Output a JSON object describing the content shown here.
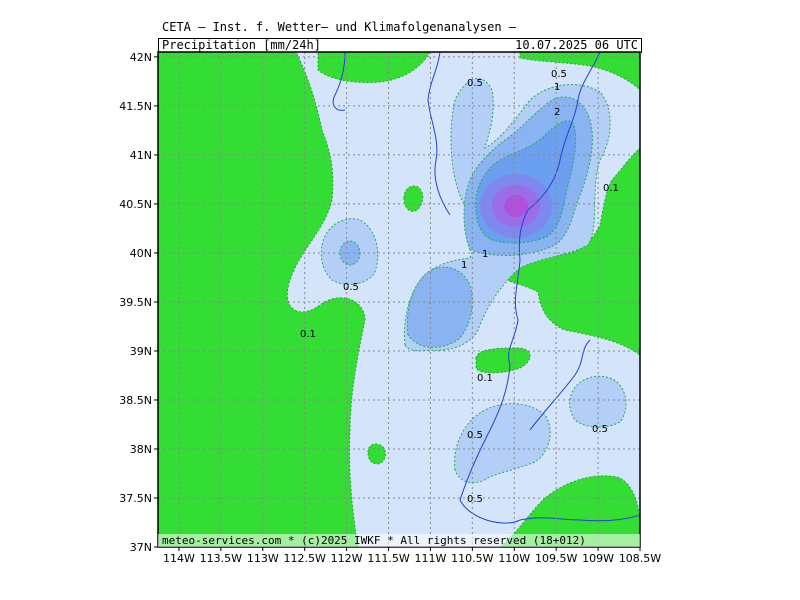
{
  "header": {
    "title": "CETA – Inst. f. Wetter– und Klimafolgenanalysen –",
    "product": "Precipitation [mm/24h]",
    "valid_time": "10.07.2025 06 UTC"
  },
  "footer": {
    "credit": "meteo-services.com * (c)2025 IWKF * All rights reserved (18+012)"
  },
  "axes": {
    "lat_ticks": [
      "42N",
      "41.5N",
      "41N",
      "40.5N",
      "40N",
      "39.5N",
      "39N",
      "38.5N",
      "38N",
      "37.5N",
      "37N"
    ],
    "lon_ticks": [
      "114W",
      "113.5W",
      "113W",
      "112.5W",
      "112W",
      "111.5W",
      "111W",
      "110.5W",
      "110W",
      "109.5W",
      "109W",
      "108.5W"
    ]
  },
  "legend_levels_mm": [
    0.1,
    0.5,
    1,
    2
  ],
  "contour_labels": [
    "0.5",
    "0.5",
    "1",
    "2",
    "0.1",
    "1",
    "1",
    "0.5",
    "0.1",
    "0.1",
    "0.5",
    "0.5",
    "0.5"
  ],
  "colors": {
    "below_0_1": "#33dd33",
    "level_0_1": "#d4e4fa",
    "level_0_5": "#b3cff7",
    "level_1": "#8ab3f2",
    "level_2": "#6aa0ef",
    "core_outer": "#7f88ee",
    "core_mid": "#9a6ee8",
    "core_inner": "#b04fe0",
    "border": "#2244cc",
    "grid": "#888888"
  }
}
